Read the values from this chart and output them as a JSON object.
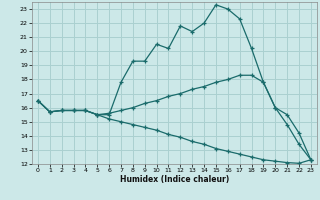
{
  "xlabel": "Humidex (Indice chaleur)",
  "background_color": "#cce8e8",
  "grid_color": "#aad0d0",
  "line_color": "#1a6b6b",
  "xlim": [
    -0.5,
    23.5
  ],
  "ylim": [
    12,
    23.5
  ],
  "yticks": [
    12,
    13,
    14,
    15,
    16,
    17,
    18,
    19,
    20,
    21,
    22,
    23
  ],
  "xticks": [
    0,
    1,
    2,
    3,
    4,
    5,
    6,
    7,
    8,
    9,
    10,
    11,
    12,
    13,
    14,
    15,
    16,
    17,
    18,
    19,
    20,
    21,
    22,
    23
  ],
  "line1_x": [
    0,
    1,
    2,
    3,
    4,
    5,
    6,
    7,
    8,
    9,
    10,
    11,
    12,
    13,
    14,
    15,
    16,
    17,
    18,
    19,
    20,
    21,
    22,
    23
  ],
  "line1_y": [
    16.5,
    15.7,
    15.8,
    15.8,
    15.8,
    15.5,
    15.5,
    17.8,
    19.3,
    19.3,
    20.5,
    20.2,
    21.8,
    21.4,
    22.0,
    23.3,
    23.0,
    22.3,
    20.2,
    17.8,
    16.0,
    14.8,
    13.4,
    12.3
  ],
  "line2_x": [
    0,
    1,
    2,
    3,
    4,
    5,
    6,
    7,
    8,
    9,
    10,
    11,
    12,
    13,
    14,
    15,
    16,
    17,
    18,
    19,
    20,
    21,
    22,
    23
  ],
  "line2_y": [
    16.5,
    15.7,
    15.8,
    15.8,
    15.8,
    15.5,
    15.6,
    15.8,
    16.0,
    16.3,
    16.5,
    16.8,
    17.0,
    17.3,
    17.5,
    17.8,
    18.0,
    18.3,
    18.3,
    17.8,
    16.0,
    15.5,
    14.2,
    12.3
  ],
  "line3_x": [
    0,
    1,
    2,
    3,
    4,
    5,
    6,
    7,
    8,
    9,
    10,
    11,
    12,
    13,
    14,
    15,
    16,
    17,
    18,
    19,
    20,
    21,
    22,
    23
  ],
  "line3_y": [
    16.5,
    15.7,
    15.8,
    15.8,
    15.8,
    15.5,
    15.2,
    15.0,
    14.8,
    14.6,
    14.4,
    14.1,
    13.9,
    13.6,
    13.4,
    13.1,
    12.9,
    12.7,
    12.5,
    12.3,
    12.2,
    12.1,
    12.05,
    12.3
  ]
}
